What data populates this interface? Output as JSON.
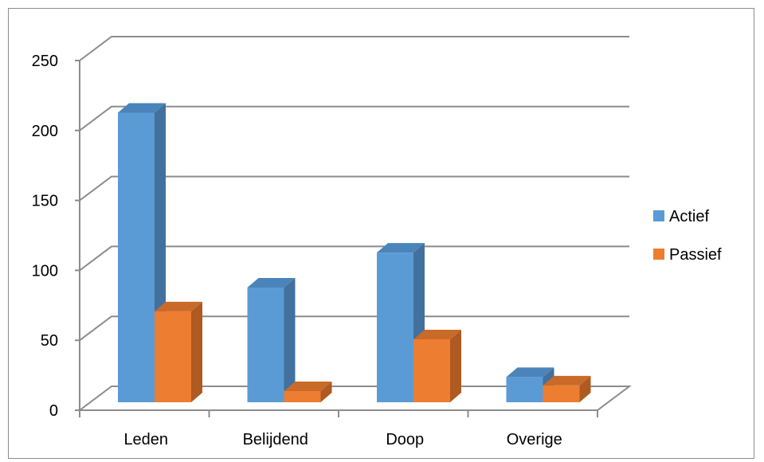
{
  "chart_data": {
    "type": "bar",
    "variant": "3d-clustered-column",
    "categories": [
      "Leden",
      "Belijdend",
      "Doop",
      "Overige"
    ],
    "series": [
      {
        "name": "Actief",
        "values": [
          207,
          82,
          107,
          18
        ],
        "color": "#5b9bd5",
        "side_color": "#41719c",
        "top_color": "#4a84bb"
      },
      {
        "name": "Passief",
        "values": [
          65,
          8,
          45,
          12
        ],
        "color": "#ed7d31",
        "side_color": "#ae5a21",
        "top_color": "#c96a29"
      }
    ],
    "ylim": [
      0,
      250
    ],
    "yticks": [
      "0",
      "50",
      "100",
      "150",
      "200",
      "250"
    ],
    "grid": true,
    "legend": "right",
    "gridline_color": "#8c8c8c"
  }
}
